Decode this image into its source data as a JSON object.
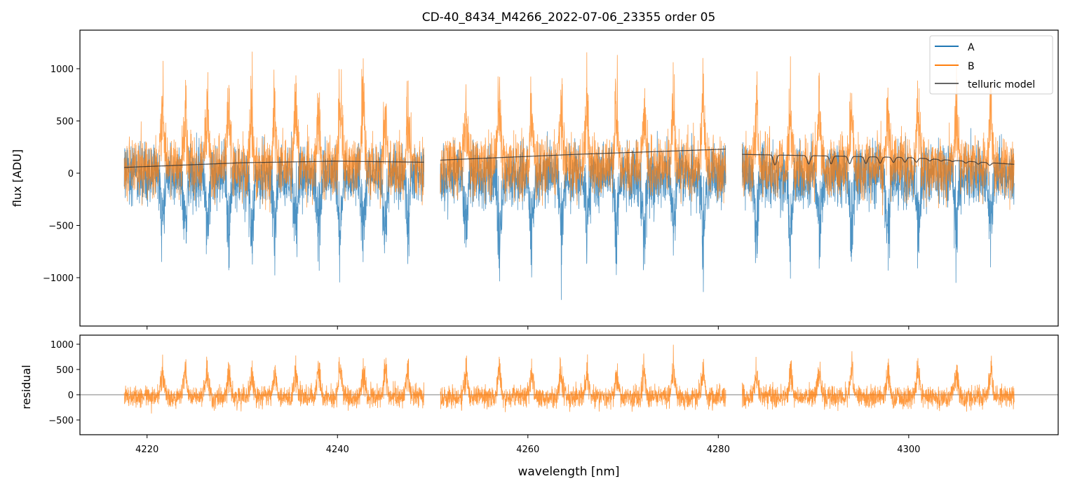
{
  "chart_data": {
    "type": "line",
    "title": "CD-40_8434_M4266_2022-07-06_23355  order 05",
    "xlabel": "wavelength [nm]",
    "xlim": [
      4212.95,
      4315.7
    ],
    "xticks": [
      4220,
      4240,
      4260,
      4280,
      4300
    ],
    "xtick_labels": [
      "4220",
      "4240",
      "4260",
      "4280",
      "4300"
    ],
    "panels": [
      {
        "name": "flux",
        "ylabel": "flux [ADU]",
        "ylim": [
          -1463,
          1369
        ],
        "yticks": [
          -1000,
          -500,
          0,
          500,
          1000
        ],
        "ytick_labels": [
          "−1000",
          "−500",
          "0",
          "500",
          "1000"
        ],
        "legend": {
          "placement": "top-right",
          "entries": [
            "A",
            "B",
            "telluric model"
          ]
        }
      },
      {
        "name": "residual",
        "ylabel": "residual",
        "ylim": [
          -792,
          1180
        ],
        "yticks": [
          -500,
          0,
          500,
          1000
        ],
        "ytick_labels": [
          "−500",
          "0",
          "500",
          "1000"
        ],
        "zero_line": true
      }
    ],
    "segments": [
      [
        4217.6,
        4249.1
      ],
      [
        4250.8,
        4280.8
      ],
      [
        4282.5,
        4311.1
      ]
    ],
    "series": [
      {
        "name": "A",
        "color": "#1f77b4",
        "baseline": -20,
        "noise": 150,
        "line_depth": -650
      },
      {
        "name": "B",
        "color": "#ff7f0e",
        "baseline": 60,
        "noise": 150,
        "line_height": 650
      },
      {
        "name": "telluric model",
        "color": "#333333",
        "points": [
          [
            4217.6,
            55
          ],
          [
            4230,
            100
          ],
          [
            4240,
            115
          ],
          [
            4249.1,
            105
          ],
          [
            4250.8,
            125
          ],
          [
            4265,
            180
          ],
          [
            4280.8,
            230
          ],
          [
            4282.5,
            180
          ],
          [
            4300,
            150
          ],
          [
            4311.1,
            85
          ]
        ],
        "absorption_lines": [
          [
            4285.95,
            95
          ],
          [
            4289.5,
            80
          ],
          [
            4291.85,
            75
          ],
          [
            4293.8,
            70
          ],
          [
            4295.5,
            65
          ],
          [
            4297.0,
            60
          ],
          [
            4298.4,
            50
          ],
          [
            4299.6,
            45
          ],
          [
            4300.8,
            40
          ],
          [
            4302.2,
            20
          ],
          [
            4303.4,
            15
          ],
          [
            4304.6,
            12
          ],
          [
            4306.0,
            18
          ],
          [
            4307.3,
            20
          ],
          [
            4308.5,
            25
          ]
        ]
      },
      {
        "name": "residual",
        "color": "#ff7f0e",
        "noise": 140,
        "line_height": 600
      }
    ],
    "emission_peaks_nm": [
      4221.6,
      4224.0,
      4226.3,
      4228.6,
      4231.0,
      4233.4,
      4235.6,
      4238.0,
      4240.3,
      4242.7,
      4245.0,
      4247.4,
      4253.5,
      4257.0,
      4260.4,
      4263.5,
      4266.2,
      4269.3,
      4272.2,
      4275.3,
      4278.4,
      4284.0,
      4287.6,
      4290.6,
      4294.0,
      4297.8,
      4301.0,
      4305.0,
      4308.6
    ]
  }
}
